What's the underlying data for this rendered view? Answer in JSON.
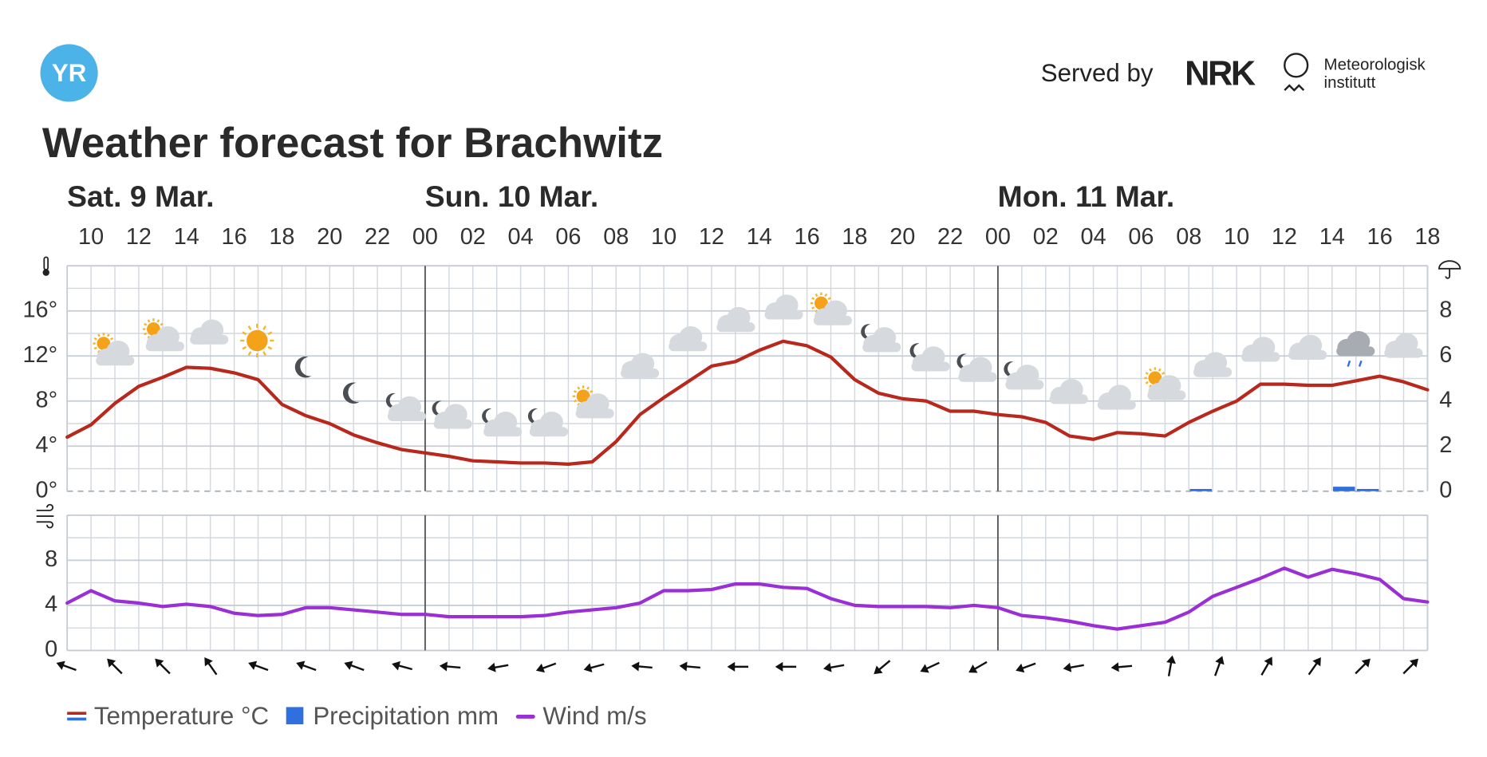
{
  "header": {
    "logo": "YR",
    "served_by": "Served by",
    "nrk": "NRK",
    "met": [
      "Meteorologisk",
      "institutt"
    ]
  },
  "chart_data": [
    {
      "type": "line",
      "title": "Weather forecast for Brachwitz",
      "days": [
        "Sat. 9 Mar.",
        "Sun. 10 Mar.",
        "Mon. 11 Mar."
      ],
      "categories": [
        null,
        "10",
        null,
        "12",
        null,
        "14",
        null,
        "16",
        null,
        "18",
        null,
        "20",
        null,
        "22",
        null,
        "00",
        null,
        "02",
        null,
        "04",
        null,
        "06",
        null,
        "08",
        null,
        "10",
        null,
        "12",
        null,
        "14",
        null,
        "16",
        null,
        "18",
        null,
        "20",
        null,
        "22",
        null,
        "00",
        null,
        "02",
        null,
        "04",
        null,
        "06",
        null,
        "08",
        null,
        "10",
        null,
        "12",
        null,
        "14",
        null,
        "16",
        null,
        "18"
      ],
      "series": [
        {
          "name": "Temperature °C",
          "color": "#b8281c",
          "values": [
            4.8,
            5.9,
            7.8,
            9.3,
            10.1,
            11.0,
            10.9,
            10.5,
            9.9,
            7.7,
            6.7,
            6.0,
            5.0,
            4.3,
            3.7,
            3.4,
            3.1,
            2.7,
            2.6,
            2.5,
            2.5,
            2.4,
            2.6,
            4.4,
            6.8,
            8.3,
            9.7,
            11.1,
            11.5,
            12.5,
            13.3,
            12.9,
            11.9,
            9.9,
            8.7,
            8.2,
            8.0,
            7.1,
            7.1,
            6.8,
            6.6,
            6.1,
            4.9,
            4.6,
            5.2,
            5.1,
            4.9,
            6.1,
            7.1,
            8.0,
            9.5,
            9.5,
            9.4,
            9.4,
            9.8,
            10.2,
            9.7,
            9.0
          ]
        },
        {
          "name": "Precipitation mm",
          "color": "#2f6fde",
          "type": "bar",
          "axis": "y2",
          "values": [
            null,
            null,
            null,
            null,
            null,
            null,
            null,
            null,
            null,
            null,
            null,
            null,
            null,
            null,
            null,
            null,
            null,
            null,
            null,
            null,
            null,
            null,
            null,
            null,
            null,
            null,
            null,
            null,
            null,
            null,
            null,
            null,
            null,
            null,
            null,
            null,
            null,
            null,
            null,
            null,
            null,
            null,
            null,
            null,
            null,
            null,
            null,
            0.1,
            null,
            null,
            null,
            null,
            null,
            0.2,
            0.1,
            null,
            null,
            null
          ]
        }
      ],
      "ylim": [
        0,
        20
      ],
      "yticks": [
        {
          "value": 0,
          "label": "0°"
        },
        {
          "value": 4,
          "label": "4°"
        },
        {
          "value": 8,
          "label": "8°"
        },
        {
          "value": 12,
          "label": "12°"
        },
        {
          "value": 16,
          "label": "16°"
        }
      ],
      "y2lim": [
        0,
        10
      ],
      "y2ticks": [
        0,
        2,
        4,
        6,
        8
      ],
      "grid": true
    },
    {
      "type": "line",
      "series": [
        {
          "name": "Wind m/s",
          "color": "#9b2fd6",
          "values": [
            4.2,
            5.3,
            4.4,
            4.2,
            3.9,
            4.1,
            3.9,
            3.3,
            3.1,
            3.2,
            3.8,
            3.8,
            3.6,
            3.4,
            3.2,
            3.2,
            3.0,
            3.0,
            3.0,
            3.0,
            3.1,
            3.4,
            3.6,
            3.8,
            4.2,
            5.3,
            5.3,
            5.4,
            5.9,
            5.9,
            5.6,
            5.5,
            4.6,
            4.0,
            3.9,
            3.9,
            3.9,
            3.8,
            4.0,
            3.8,
            3.1,
            2.9,
            2.6,
            2.2,
            1.9,
            2.2,
            2.5,
            3.4,
            4.8,
            5.6,
            6.4,
            7.3,
            6.5,
            7.2,
            6.8,
            6.3,
            4.6,
            4.3
          ]
        }
      ],
      "ylim": [
        0,
        12
      ],
      "yticks": [
        0,
        4,
        8
      ],
      "grid": true
    }
  ]
}
